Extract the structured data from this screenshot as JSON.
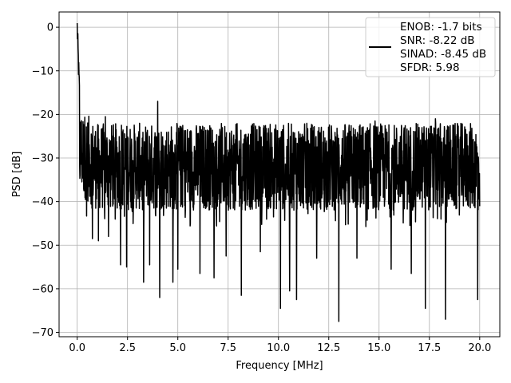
{
  "chart_data": {
    "type": "line",
    "xlabel": "Frequency [MHz]",
    "ylabel": "PSD [dB]",
    "xlim": [
      -0.9,
      21.0
    ],
    "ylim": [
      -71.0,
      3.5
    ],
    "x_ticks": [
      0.0,
      2.5,
      5.0,
      7.5,
      10.0,
      12.5,
      15.0,
      17.5,
      20.0
    ],
    "x_tick_labels": [
      "0.0",
      "2.5",
      "5.0",
      "7.5",
      "10.0",
      "12.5",
      "15.0",
      "17.5",
      "20.0"
    ],
    "y_ticks": [
      0,
      -10,
      -20,
      -30,
      -40,
      -50,
      -60,
      -70
    ],
    "y_tick_labels": [
      "0",
      "−10",
      "−20",
      "−30",
      "−40",
      "−50",
      "−60",
      "−70"
    ],
    "grid": true,
    "legend_position": "top-right",
    "series": [
      {
        "name": "ENOB: -1.7 bits\nSNR: -8.22 dB\nSINAD: -8.45 dB\nSFDR: 5.98",
        "legend_lines": [
          "ENOB: -1.7 bits",
          "SNR: -8.22 dB",
          "SINAD: -8.45 dB",
          "SFDR: 5.98"
        ],
        "color": "#000000",
        "x_range": [
          0.0,
          20.0
        ],
        "peak": {
          "x": 0.0,
          "y": 0.0
        },
        "noise_floor_band": {
          "median": -32,
          "typical_high": -22,
          "typical_low": -42
        },
        "spikes_up": [
          {
            "x": 0.7,
            "y": -24.5
          },
          {
            "x": 1.4,
            "y": -20.5
          },
          {
            "x": 2.2,
            "y": -22.5
          },
          {
            "x": 4.0,
            "y": -17.0
          },
          {
            "x": 14.8,
            "y": -21.5
          },
          {
            "x": 17.8,
            "y": -21.0
          }
        ],
        "spikes_down": [
          {
            "x": 0.75,
            "y": -48.5
          },
          {
            "x": 1.05,
            "y": -49.0
          },
          {
            "x": 1.55,
            "y": -48.0
          },
          {
            "x": 2.15,
            "y": -54.5
          },
          {
            "x": 2.45,
            "y": -55.0
          },
          {
            "x": 3.3,
            "y": -58.5
          },
          {
            "x": 3.6,
            "y": -54.5
          },
          {
            "x": 4.1,
            "y": -62.0
          },
          {
            "x": 4.75,
            "y": -58.5
          },
          {
            "x": 5.0,
            "y": -55.5
          },
          {
            "x": 6.1,
            "y": -56.5
          },
          {
            "x": 6.8,
            "y": -57.5
          },
          {
            "x": 7.4,
            "y": -52.5
          },
          {
            "x": 8.15,
            "y": -61.5
          },
          {
            "x": 9.1,
            "y": -51.5
          },
          {
            "x": 10.1,
            "y": -64.5
          },
          {
            "x": 10.55,
            "y": -60.5
          },
          {
            "x": 10.9,
            "y": -62.5
          },
          {
            "x": 11.9,
            "y": -53.0
          },
          {
            "x": 13.0,
            "y": -67.5
          },
          {
            "x": 13.9,
            "y": -53.0
          },
          {
            "x": 15.6,
            "y": -55.5
          },
          {
            "x": 16.6,
            "y": -56.5
          },
          {
            "x": 17.3,
            "y": -64.5
          },
          {
            "x": 18.3,
            "y": -67.0
          },
          {
            "x": 19.9,
            "y": -62.5
          }
        ]
      }
    ]
  }
}
